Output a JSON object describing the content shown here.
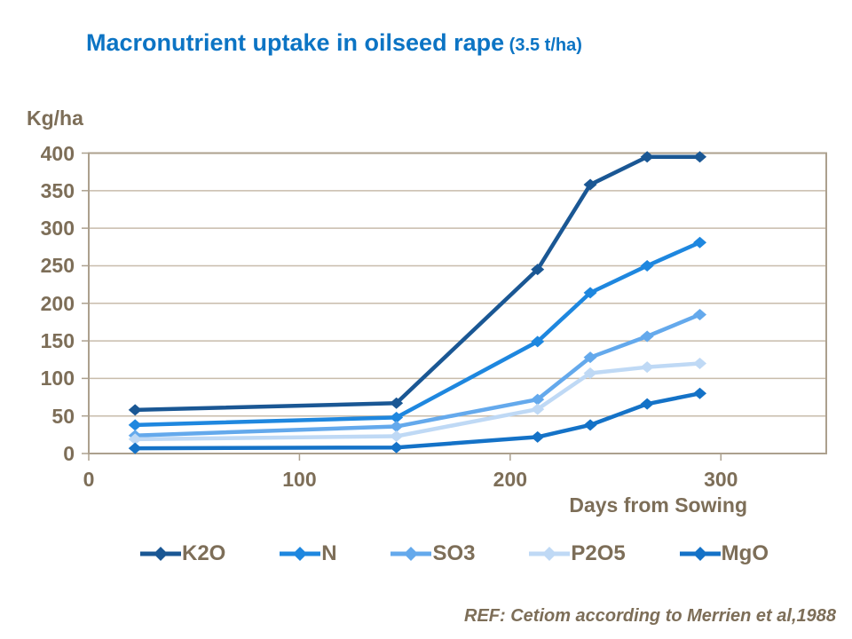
{
  "title": {
    "main": "Macronutrient uptake in oilseed rape",
    "suffix": " (3.5 t/ha)"
  },
  "footer": "REF: Cetiom according to Merrien et al,1988",
  "colors": {
    "title": "#0C74C4",
    "text": "#7D6E58",
    "axis": "#ACA08E",
    "gridline": "#C8BCAB"
  },
  "chart_data": {
    "type": "line",
    "title": "Macronutrient uptake in oilseed rape (3.5 t/ha)",
    "xlabel": "Days from Sowing",
    "ylabel": "Kg/ha",
    "xlim": [
      0,
      350
    ],
    "ylim": [
      0,
      400
    ],
    "x_ticks": [
      0,
      100,
      200,
      300
    ],
    "y_ticks": [
      0,
      50,
      100,
      150,
      200,
      250,
      300,
      350,
      400
    ],
    "grid": "horizontal",
    "legend_position": "bottom",
    "marker": "diamond",
    "x": [
      22,
      146,
      213,
      238,
      265,
      290
    ],
    "series": [
      {
        "name": "K2O",
        "color": "#1A5794",
        "values": [
          58,
          67,
          245,
          358,
          395,
          395
        ]
      },
      {
        "name": "N",
        "color": "#1E87DF",
        "values": [
          38,
          48,
          149,
          214,
          250,
          281
        ]
      },
      {
        "name": "SO3",
        "color": "#64A9EC",
        "values": [
          24,
          36,
          72,
          128,
          156,
          185
        ]
      },
      {
        "name": "P2O5",
        "color": "#BFD9F5",
        "values": [
          19,
          23,
          59,
          107,
          115,
          120
        ]
      },
      {
        "name": "MgO",
        "color": "#1472C7",
        "values": [
          7,
          8,
          22,
          38,
          66,
          80
        ]
      }
    ]
  }
}
